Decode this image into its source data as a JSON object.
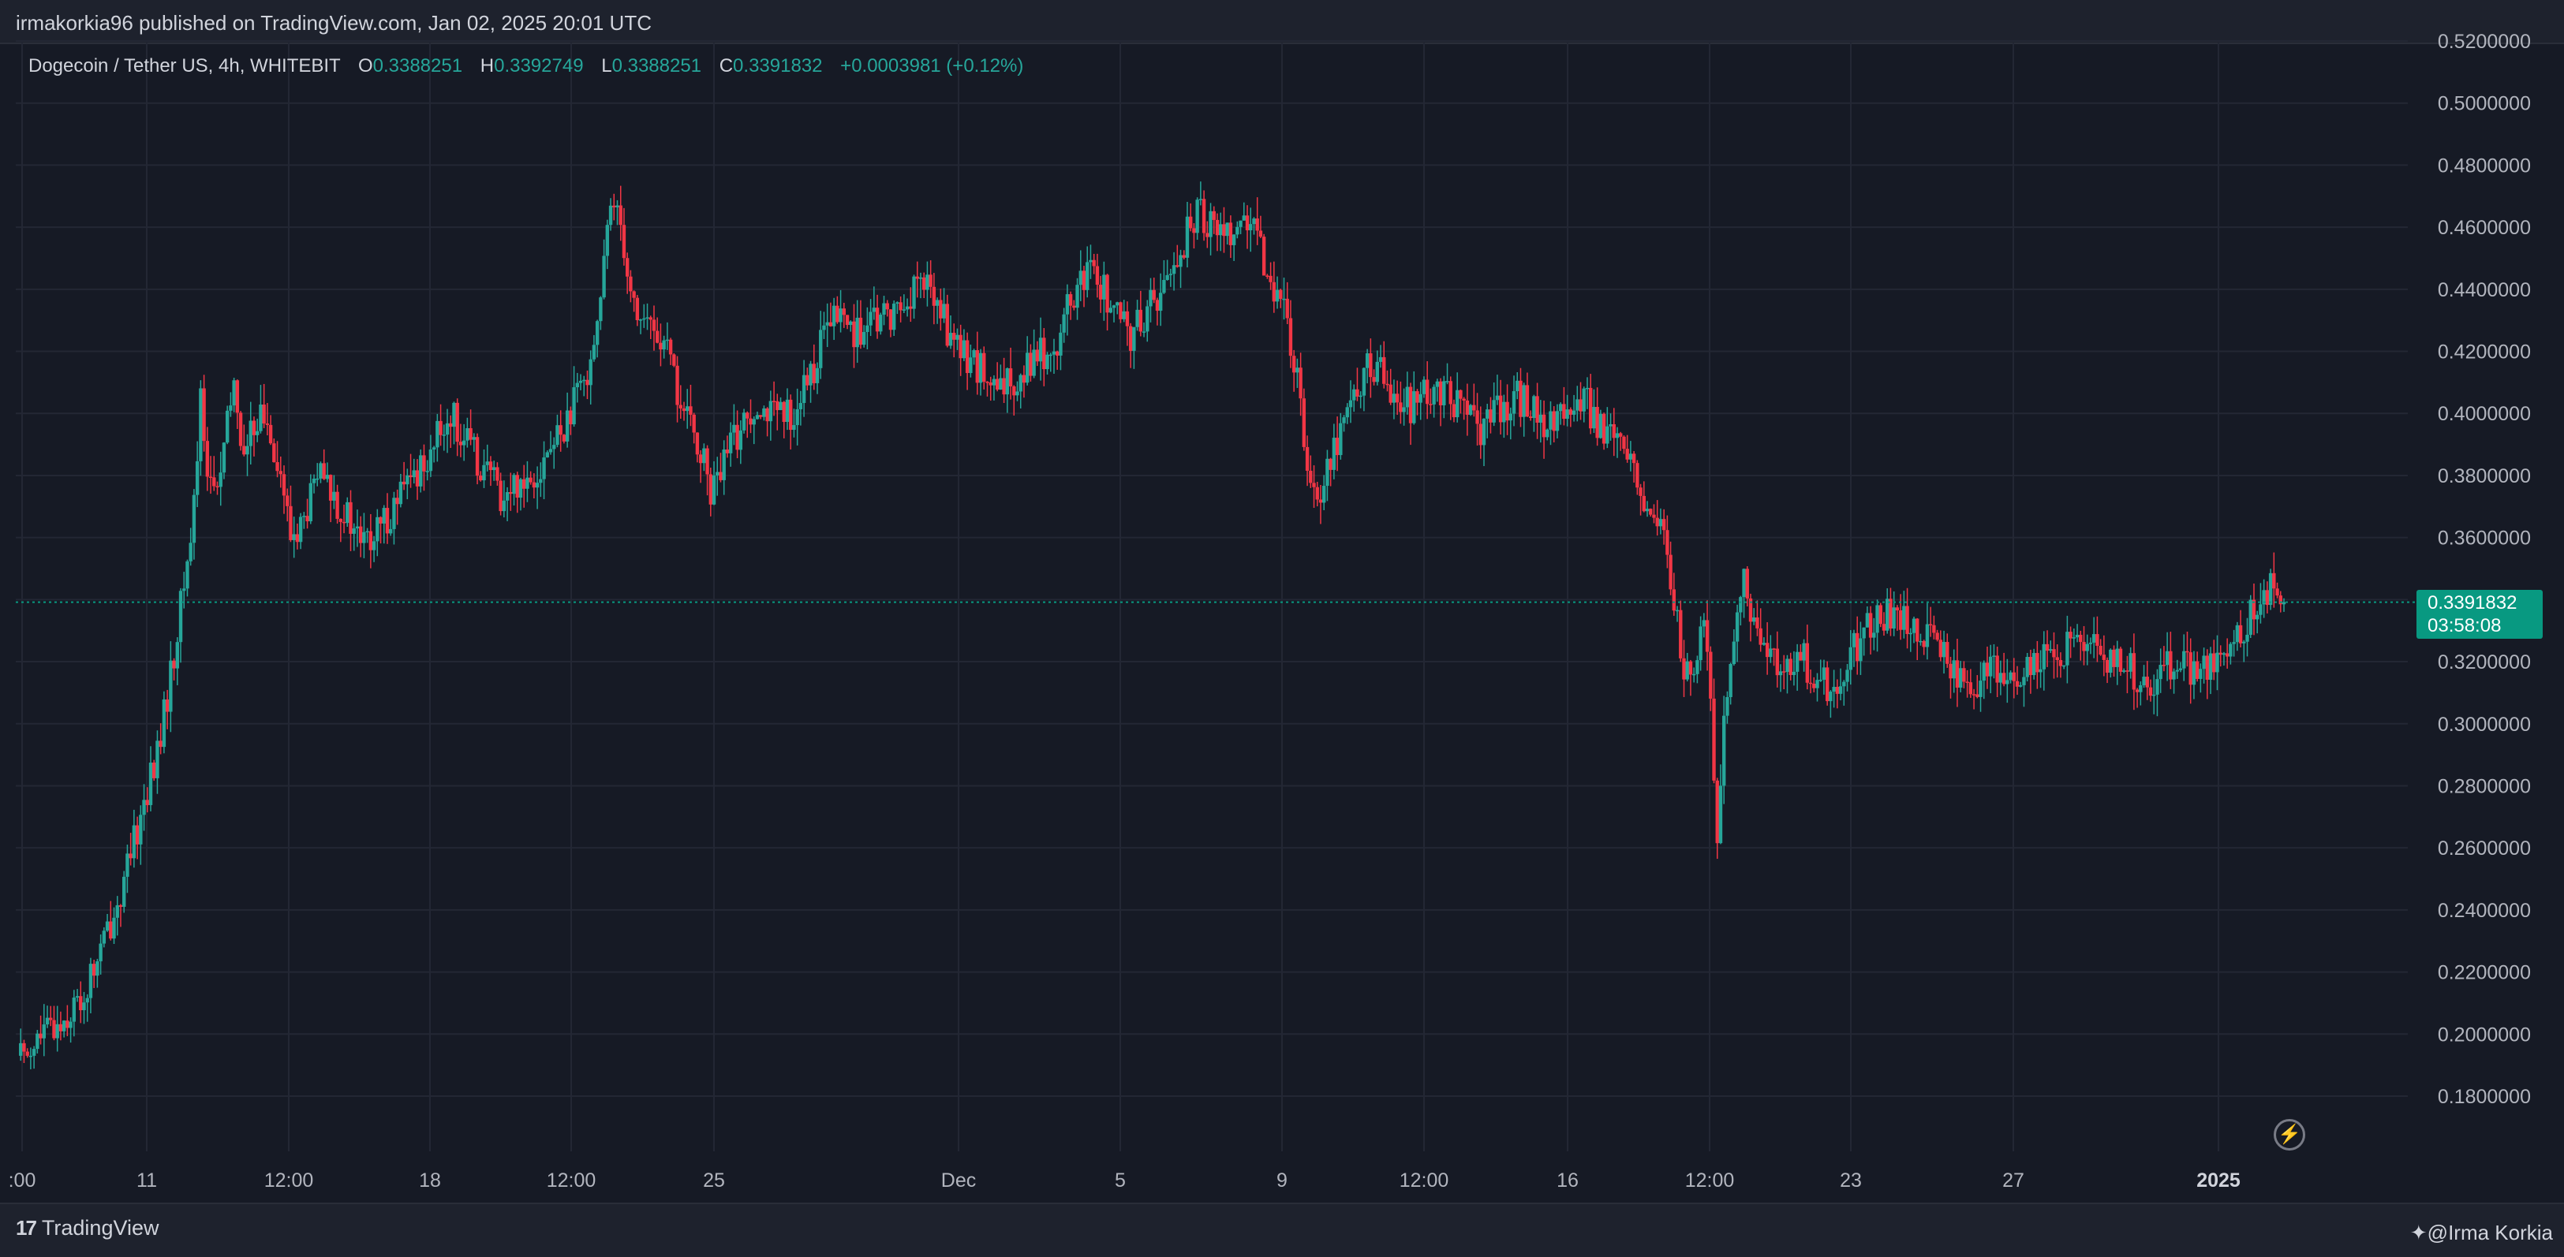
{
  "header": {
    "publisher_line": "irmakorkia96 published on TradingView.com, Jan 02, 2025 20:01 UTC"
  },
  "legend": {
    "symbol": "Dogecoin / Tether US, 4h, WHITEBIT",
    "o_label": "O",
    "o_value": "0.3388251",
    "h_label": "H",
    "h_value": "0.3392749",
    "l_label": "L",
    "l_value": "0.3388251",
    "c_label": "C",
    "c_value": "0.3391832",
    "change": "+0.0003981 (+0.12%)"
  },
  "price_tag": {
    "price": "0.3391832",
    "countdown": "03:58:08"
  },
  "footer": {
    "brand": "TradingView",
    "author": "@Irma Korkia"
  },
  "icons": {
    "bolt": "lightning-icon",
    "logo": "tradingview-logo-icon"
  },
  "colors": {
    "background": "#161a25",
    "up": "#26a69a",
    "down": "#f23645",
    "grid": "#232734",
    "price_tag": "#089981"
  },
  "chart_data": {
    "type": "candlestick",
    "timeframe": "4h",
    "exchange": "WHITEBIT",
    "y_axis_labels": [
      "0.5200000",
      "0.5000000",
      "0.4800000",
      "0.4600000",
      "0.4400000",
      "0.4200000",
      "0.4000000",
      "0.3800000",
      "0.3600000",
      "0.3400000",
      "0.3200000",
      "0.3000000",
      "0.2800000",
      "0.2600000",
      "0.2400000",
      "0.2200000",
      "0.2000000",
      "0.1800000"
    ],
    "ylim": [
      0.165,
      0.52
    ],
    "x_axis_labels": [
      {
        "text": ":00",
        "bold": false
      },
      {
        "text": "11",
        "bold": false
      },
      {
        "text": "12:00",
        "bold": false
      },
      {
        "text": "18",
        "bold": false
      },
      {
        "text": "12:00",
        "bold": false
      },
      {
        "text": "25",
        "bold": false
      },
      {
        "text": "Dec",
        "bold": false
      },
      {
        "text": "5",
        "bold": false
      },
      {
        "text": "9",
        "bold": false
      },
      {
        "text": "12:00",
        "bold": false
      },
      {
        "text": "16",
        "bold": false
      },
      {
        "text": "12:00",
        "bold": false
      },
      {
        "text": "23",
        "bold": false
      },
      {
        "text": "27",
        "bold": false
      },
      {
        "text": "2025",
        "bold": true
      }
    ],
    "current_price": 0.3391832,
    "close_path": [
      [
        0,
        0.193
      ],
      [
        8,
        0.2
      ],
      [
        14,
        0.205
      ],
      [
        20,
        0.212
      ],
      [
        26,
        0.23
      ],
      [
        32,
        0.248
      ],
      [
        38,
        0.275
      ],
      [
        42,
        0.29
      ],
      [
        46,
        0.315
      ],
      [
        50,
        0.345
      ],
      [
        52,
        0.36
      ],
      [
        54,
        0.385
      ],
      [
        55,
        0.41
      ],
      [
        57,
        0.38
      ],
      [
        60,
        0.375
      ],
      [
        63,
        0.395
      ],
      [
        65,
        0.41
      ],
      [
        68,
        0.385
      ],
      [
        72,
        0.4
      ],
      [
        76,
        0.395
      ],
      [
        79,
        0.38
      ],
      [
        82,
        0.36
      ],
      [
        86,
        0.365
      ],
      [
        90,
        0.38
      ],
      [
        94,
        0.375
      ],
      [
        98,
        0.368
      ],
      [
        102,
        0.36
      ],
      [
        106,
        0.358
      ],
      [
        110,
        0.365
      ],
      [
        114,
        0.372
      ],
      [
        118,
        0.378
      ],
      [
        122,
        0.385
      ],
      [
        126,
        0.392
      ],
      [
        130,
        0.4
      ],
      [
        134,
        0.392
      ],
      [
        138,
        0.385
      ],
      [
        142,
        0.38
      ],
      [
        146,
        0.372
      ],
      [
        150,
        0.378
      ],
      [
        154,
        0.38
      ],
      [
        158,
        0.385
      ],
      [
        162,
        0.392
      ],
      [
        166,
        0.4
      ],
      [
        170,
        0.41
      ],
      [
        174,
        0.43
      ],
      [
        178,
        0.465
      ],
      [
        180,
        0.47
      ],
      [
        182,
        0.455
      ],
      [
        184,
        0.44
      ],
      [
        186,
        0.432
      ],
      [
        190,
        0.428
      ],
      [
        194,
        0.422
      ],
      [
        197,
        0.412
      ],
      [
        199,
        0.402
      ],
      [
        202,
        0.395
      ],
      [
        205,
        0.388
      ],
      [
        208,
        0.375
      ],
      [
        211,
        0.38
      ],
      [
        214,
        0.39
      ],
      [
        218,
        0.397
      ],
      [
        222,
        0.405
      ],
      [
        226,
        0.4
      ],
      [
        230,
        0.398
      ],
      [
        234,
        0.402
      ],
      [
        238,
        0.412
      ],
      [
        242,
        0.425
      ],
      [
        246,
        0.432
      ],
      [
        250,
        0.428
      ],
      [
        254,
        0.425
      ],
      [
        258,
        0.43
      ],
      [
        262,
        0.432
      ],
      [
        266,
        0.435
      ],
      [
        270,
        0.442
      ],
      [
        274,
        0.44
      ],
      [
        278,
        0.43
      ],
      [
        282,
        0.42
      ],
      [
        286,
        0.418
      ],
      [
        290,
        0.412
      ],
      [
        294,
        0.405
      ],
      [
        298,
        0.41
      ],
      [
        302,
        0.415
      ],
      [
        306,
        0.42
      ],
      [
        310,
        0.418
      ],
      [
        314,
        0.43
      ],
      [
        318,
        0.44
      ],
      [
        322,
        0.445
      ],
      [
        326,
        0.44
      ],
      [
        330,
        0.43
      ],
      [
        334,
        0.425
      ],
      [
        338,
        0.432
      ],
      [
        342,
        0.438
      ],
      [
        346,
        0.445
      ],
      [
        350,
        0.455
      ],
      [
        354,
        0.465
      ],
      [
        358,
        0.462
      ],
      [
        362,
        0.458
      ],
      [
        366,
        0.462
      ],
      [
        370,
        0.46
      ],
      [
        374,
        0.448
      ],
      [
        378,
        0.44
      ],
      [
        381,
        0.428
      ],
      [
        384,
        0.41
      ],
      [
        386,
        0.395
      ],
      [
        388,
        0.38
      ],
      [
        390,
        0.372
      ],
      [
        393,
        0.385
      ],
      [
        396,
        0.392
      ],
      [
        399,
        0.4
      ],
      [
        402,
        0.41
      ],
      [
        406,
        0.415
      ],
      [
        410,
        0.412
      ],
      [
        414,
        0.405
      ],
      [
        418,
        0.402
      ],
      [
        422,
        0.405
      ],
      [
        426,
        0.408
      ],
      [
        430,
        0.405
      ],
      [
        434,
        0.4
      ],
      [
        438,
        0.395
      ],
      [
        442,
        0.398
      ],
      [
        446,
        0.402
      ],
      [
        450,
        0.405
      ],
      [
        454,
        0.402
      ],
      [
        458,
        0.398
      ],
      [
        462,
        0.396
      ],
      [
        466,
        0.402
      ],
      [
        470,
        0.404
      ],
      [
        474,
        0.398
      ],
      [
        478,
        0.392
      ],
      [
        482,
        0.385
      ],
      [
        486,
        0.38
      ],
      [
        490,
        0.365
      ],
      [
        494,
        0.36
      ],
      [
        497,
        0.34
      ],
      [
        500,
        0.315
      ],
      [
        503,
        0.32
      ],
      [
        506,
        0.33
      ],
      [
        508,
        0.31
      ],
      [
        510,
        0.265
      ],
      [
        512,
        0.305
      ],
      [
        515,
        0.33
      ],
      [
        518,
        0.345
      ],
      [
        521,
        0.335
      ],
      [
        524,
        0.325
      ],
      [
        528,
        0.32
      ],
      [
        532,
        0.318
      ],
      [
        536,
        0.32
      ],
      [
        540,
        0.315
      ],
      [
        544,
        0.312
      ],
      [
        548,
        0.318
      ],
      [
        552,
        0.325
      ],
      [
        556,
        0.332
      ],
      [
        560,
        0.335
      ],
      [
        564,
        0.333
      ],
      [
        568,
        0.332
      ],
      [
        572,
        0.33
      ],
      [
        576,
        0.325
      ],
      [
        580,
        0.318
      ],
      [
        584,
        0.315
      ],
      [
        588,
        0.313
      ],
      [
        592,
        0.317
      ],
      [
        596,
        0.316
      ],
      [
        600,
        0.314
      ],
      [
        604,
        0.317
      ],
      [
        608,
        0.32
      ],
      [
        612,
        0.322
      ],
      [
        616,
        0.325
      ],
      [
        620,
        0.327
      ],
      [
        624,
        0.323
      ],
      [
        628,
        0.318
      ],
      [
        632,
        0.32
      ],
      [
        636,
        0.316
      ],
      [
        640,
        0.312
      ],
      [
        644,
        0.318
      ],
      [
        648,
        0.32
      ],
      [
        652,
        0.318
      ],
      [
        656,
        0.316
      ],
      [
        660,
        0.32
      ],
      [
        664,
        0.325
      ],
      [
        668,
        0.33
      ],
      [
        672,
        0.34
      ],
      [
        676,
        0.343
      ],
      [
        680,
        0.3392
      ]
    ]
  }
}
